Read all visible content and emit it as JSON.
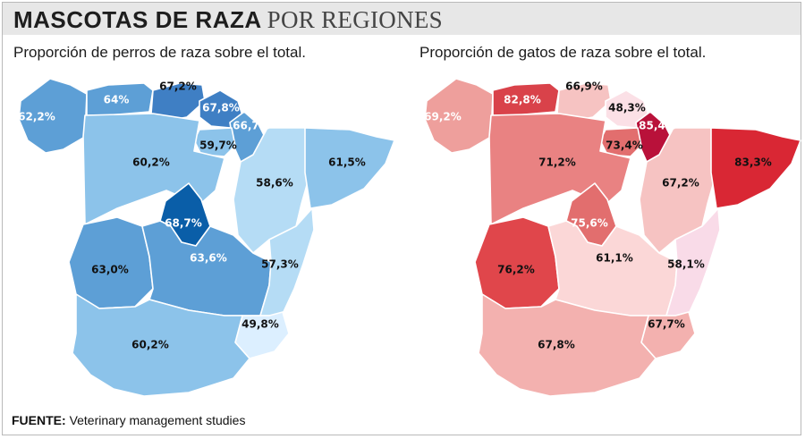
{
  "header": {
    "title_bold": "MASCOTAS DE RAZA",
    "title_light": "POR REGIONES"
  },
  "dogs": {
    "subtitle": "Proporción de perros de raza sobre el total.",
    "regions": [
      {
        "name": "galicia",
        "value": "62,2%",
        "fill": "#5d9fd6",
        "text": "#ffffff"
      },
      {
        "name": "asturias",
        "value": "64%",
        "fill": "#5d9fd6",
        "text": "#ffffff"
      },
      {
        "name": "cantabria",
        "value": "67,2%",
        "fill": "#3f7fc4",
        "text": "#111111"
      },
      {
        "name": "pais-vasco",
        "value": "67,8%",
        "fill": "#3f7fc4",
        "text": "#ffffff"
      },
      {
        "name": "navarra",
        "value": "66,7%",
        "fill": "#5d9fd6",
        "text": "#ffffff"
      },
      {
        "name": "la-rioja",
        "value": "59,7%",
        "fill": "#8cc3ea",
        "text": "#111111"
      },
      {
        "name": "castilla-leon",
        "value": "60,2%",
        "fill": "#8cc3ea",
        "text": "#111111"
      },
      {
        "name": "aragon",
        "value": "58,6%",
        "fill": "#b5dcf5",
        "text": "#111111"
      },
      {
        "name": "cataluna",
        "value": "61,5%",
        "fill": "#8cc3ea",
        "text": "#111111"
      },
      {
        "name": "madrid",
        "value": "68,7%",
        "fill": "#0a5ea8",
        "text": "#ffffff"
      },
      {
        "name": "extremadura",
        "value": "63,0%",
        "fill": "#5d9fd6",
        "text": "#111111"
      },
      {
        "name": "castilla-la-mancha",
        "value": "63,6%",
        "fill": "#5d9fd6",
        "text": "#ffffff"
      },
      {
        "name": "valencia",
        "value": "57,3%",
        "fill": "#b5dcf5",
        "text": "#111111"
      },
      {
        "name": "murcia",
        "value": "49,8%",
        "fill": "#dcefff",
        "text": "#111111"
      },
      {
        "name": "andalucia",
        "value": "60,2%",
        "fill": "#8cc3ea",
        "text": "#111111"
      }
    ]
  },
  "cats": {
    "subtitle": "Proporción de gatos de raza sobre el total.",
    "regions": [
      {
        "name": "galicia",
        "value": "69,2%",
        "fill": "#ee9f9c",
        "text": "#ffffff"
      },
      {
        "name": "asturias",
        "value": "82,8%",
        "fill": "#d9424a",
        "text": "#ffffff"
      },
      {
        "name": "cantabria",
        "value": "66,9%",
        "fill": "#f6c3c2",
        "text": "#111111"
      },
      {
        "name": "pais-vasco",
        "value": "48,3%",
        "fill": "#fbe0e6",
        "text": "#111111"
      },
      {
        "name": "navarra",
        "value": "85,4%",
        "fill": "#b9113a",
        "text": "#ffffff"
      },
      {
        "name": "la-rioja",
        "value": "73,4%",
        "fill": "#e26e6e",
        "text": "#111111"
      },
      {
        "name": "castilla-leon",
        "value": "71,2%",
        "fill": "#e98282",
        "text": "#111111"
      },
      {
        "name": "aragon",
        "value": "67,2%",
        "fill": "#f6c3c2",
        "text": "#111111"
      },
      {
        "name": "cataluna",
        "value": "83,3%",
        "fill": "#d92734",
        "text": "#111111"
      },
      {
        "name": "madrid",
        "value": "75,6%",
        "fill": "#e26e6e",
        "text": "#ffffff"
      },
      {
        "name": "extremadura",
        "value": "76,2%",
        "fill": "#e0464b",
        "text": "#111111"
      },
      {
        "name": "castilla-la-mancha",
        "value": "61,1%",
        "fill": "#fbd7d7",
        "text": "#111111"
      },
      {
        "name": "valencia",
        "value": "58,1%",
        "fill": "#f9dbe8",
        "text": "#111111"
      },
      {
        "name": "murcia",
        "value": "67,7%",
        "fill": "#f3b1af",
        "text": "#111111"
      },
      {
        "name": "andalucia",
        "value": "67,8%",
        "fill": "#f3b1af",
        "text": "#111111"
      }
    ]
  },
  "source": {
    "label": "FUENTE:",
    "text": "Veterinary management studies"
  }
}
